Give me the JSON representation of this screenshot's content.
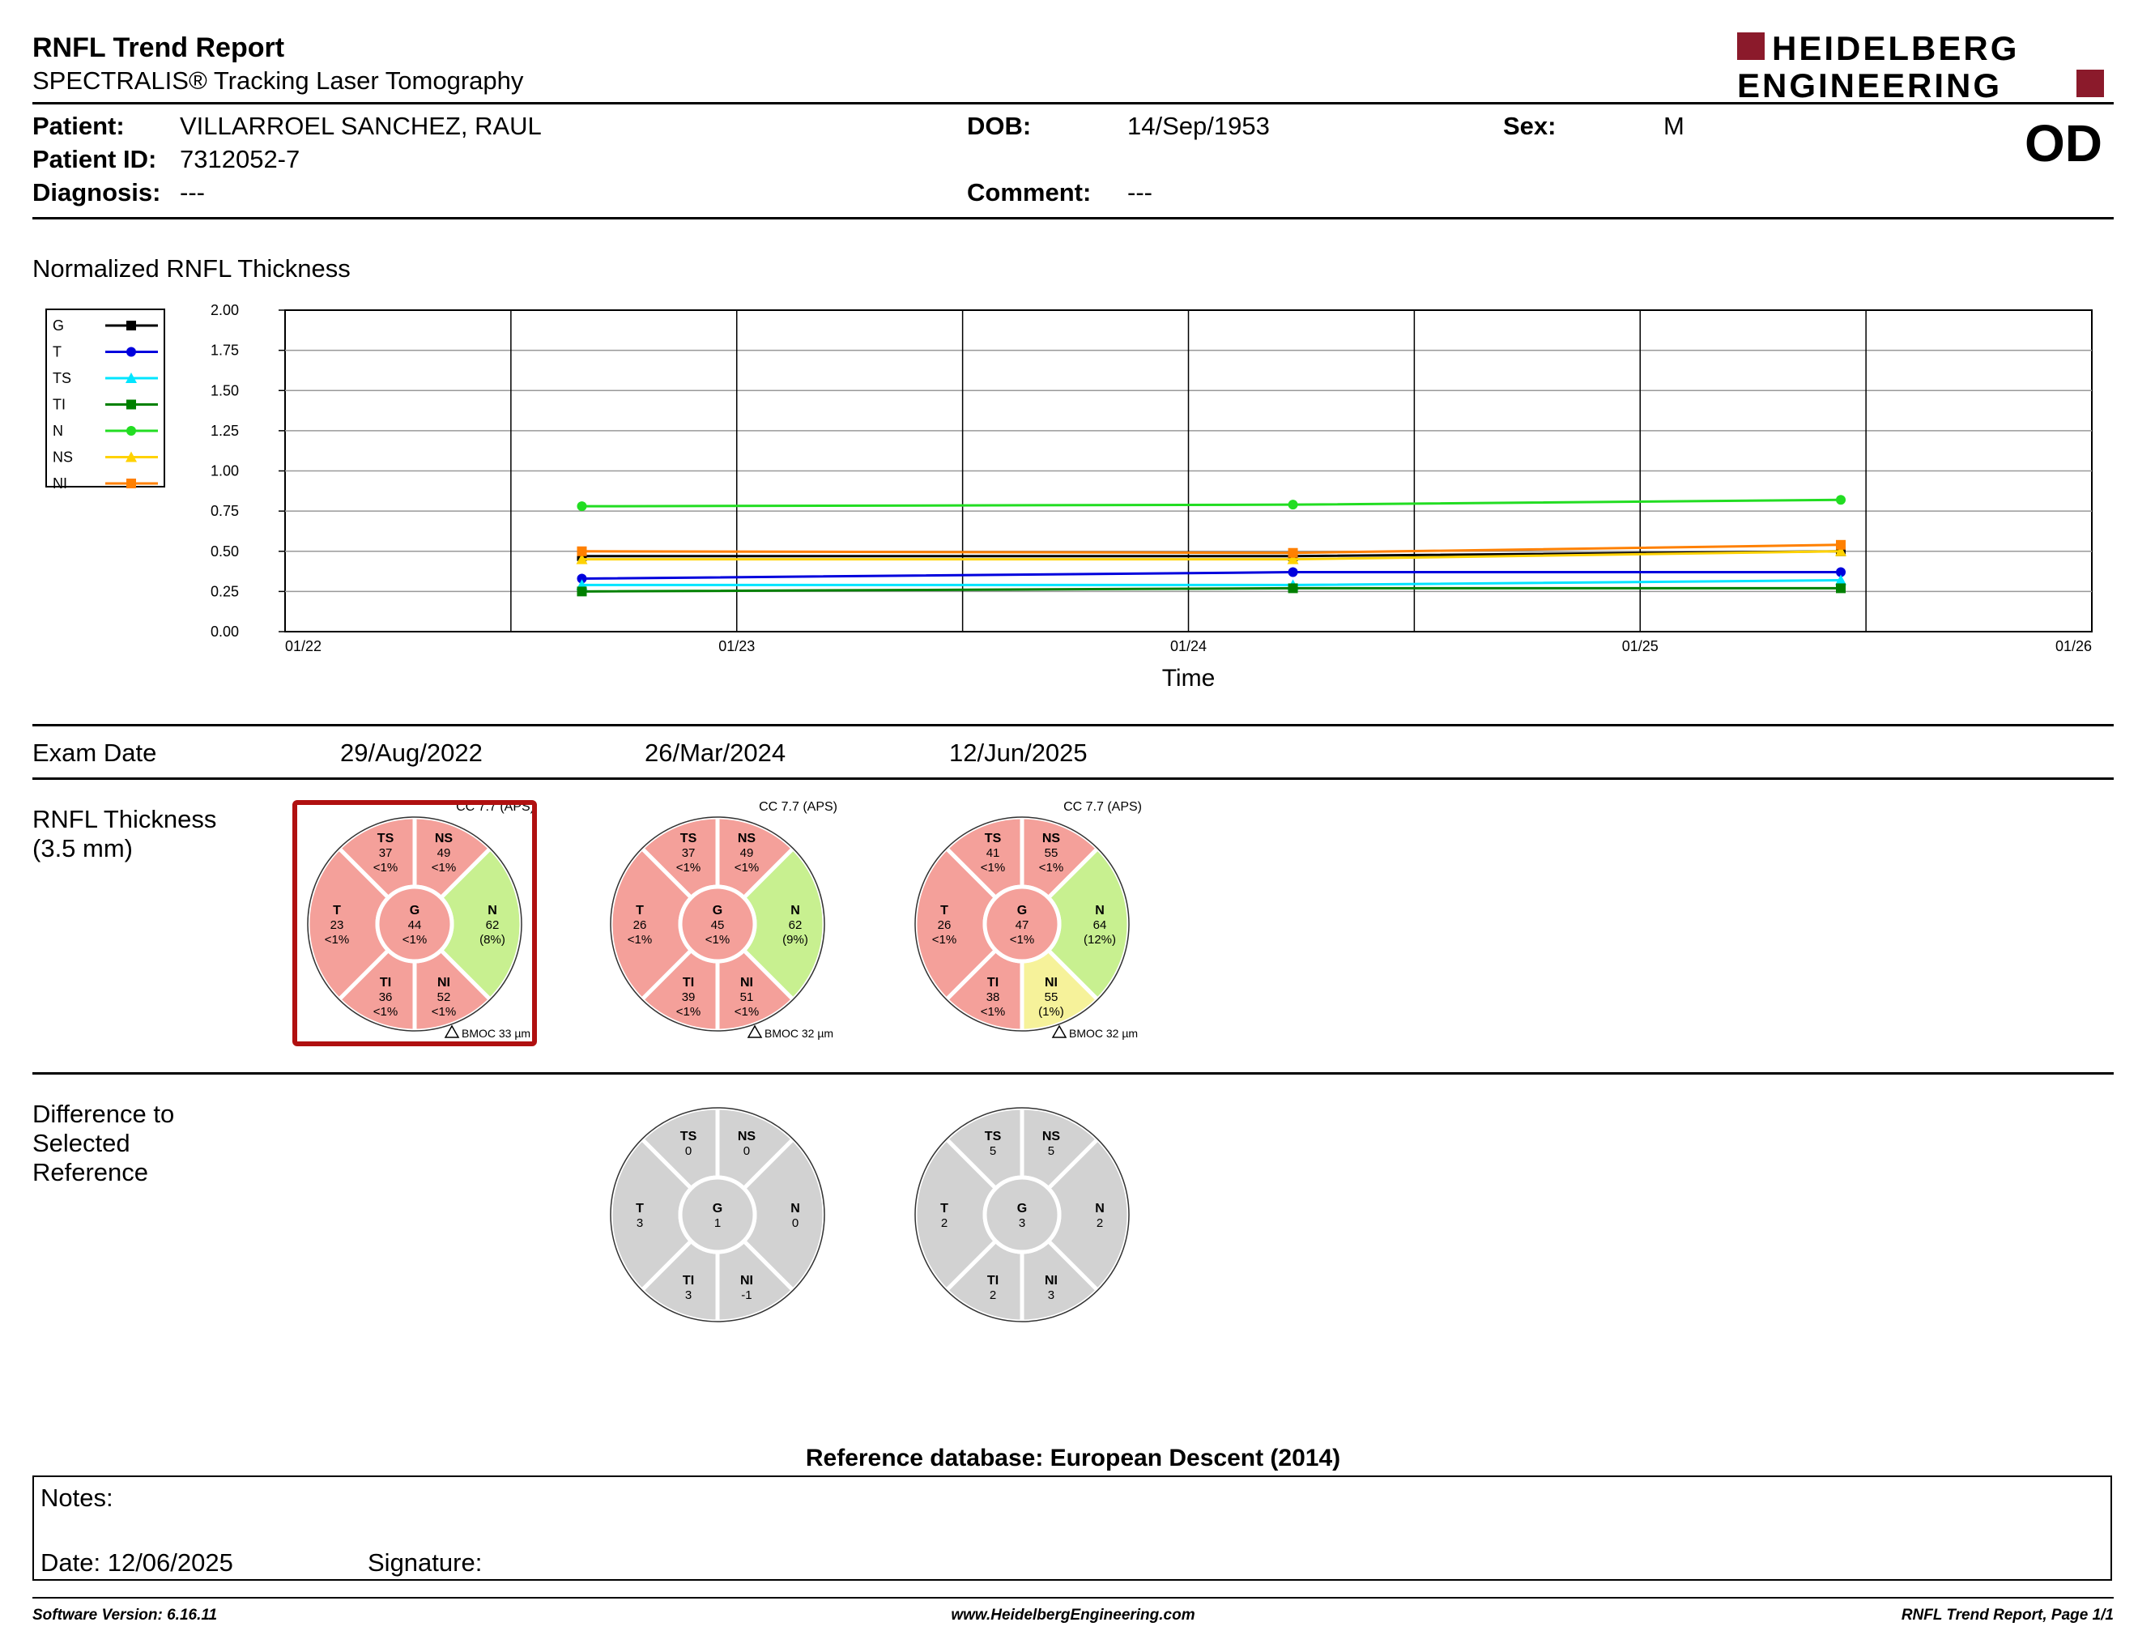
{
  "report": {
    "title": "RNFL Trend Report",
    "subtitle": "SPECTRALIS® Tracking Laser Tomography",
    "logo_line1": "HEIDELBERG",
    "logo_line2": "ENGINEERING",
    "eye": "OD"
  },
  "patient": {
    "patient_label": "Patient:",
    "patient_name": "VILLARROEL SANCHEZ, RAUL",
    "id_label": "Patient ID:",
    "id_value": "7312052-7",
    "diagnosis_label": "Diagnosis:",
    "diagnosis_value": "---",
    "dob_label": "DOB:",
    "dob_value": "14/Sep/1953",
    "comment_label": "Comment:",
    "comment_value": "---",
    "sex_label": "Sex:",
    "sex_value": "M"
  },
  "colors": {
    "brand": "#8b1a2b",
    "red_sector": "#f4a09a",
    "green_sector": "#c8f090",
    "yellow_sector": "#f6f29a",
    "gray_sector": "#d2d2d2",
    "selected_frame": "#b01010"
  },
  "chart_data": {
    "type": "line",
    "title": "Normalized RNFL Thickness",
    "xlabel": "Time",
    "ylabel": "",
    "ylim": [
      0,
      2
    ],
    "yticks": [
      "0.00",
      "0.25",
      "0.50",
      "0.75",
      "1.00",
      "1.25",
      "1.50",
      "1.75",
      "2.00"
    ],
    "xticks": [
      "01/22",
      "01/23",
      "01/24",
      "01/25",
      "01/26"
    ],
    "x": [
      "2022-08-29",
      "2024-03-26",
      "2025-06-12"
    ],
    "grid": true,
    "legend_position": "left",
    "series": [
      {
        "name": "G",
        "color": "#000000",
        "marker": "square",
        "values": [
          0.47,
          0.47,
          0.5
        ]
      },
      {
        "name": "T",
        "color": "#0000dd",
        "marker": "circle",
        "values": [
          0.33,
          0.37,
          0.37
        ]
      },
      {
        "name": "TS",
        "color": "#00e5ff",
        "marker": "triangle",
        "values": [
          0.29,
          0.29,
          0.32
        ]
      },
      {
        "name": "TI",
        "color": "#008000",
        "marker": "square",
        "values": [
          0.25,
          0.27,
          0.27
        ]
      },
      {
        "name": "N",
        "color": "#22dd22",
        "marker": "circle",
        "values": [
          0.78,
          0.79,
          0.82
        ]
      },
      {
        "name": "NS",
        "color": "#ffd200",
        "marker": "triangle",
        "values": [
          0.45,
          0.45,
          0.5
        ]
      },
      {
        "name": "NI",
        "color": "#ff8000",
        "marker": "square",
        "values": [
          0.5,
          0.49,
          0.54
        ]
      }
    ]
  },
  "exams": {
    "exam_date_label": "Exam Date",
    "thickness_label_1": "RNFL Thickness",
    "thickness_label_2": "(3.5 mm)",
    "difference_label_1": "Difference to",
    "difference_label_2": "Selected",
    "difference_label_3": "Reference",
    "dates": [
      "29/Aug/2022",
      "26/Mar/2024",
      "12/Jun/2025"
    ],
    "thickness": [
      {
        "cc": "CC 7.7 (APS)",
        "bmo": "BMOC 33 µm",
        "selected": true,
        "sectors": {
          "TS": {
            "value": "37",
            "pct": "<1%",
            "color": "red"
          },
          "NS": {
            "value": "49",
            "pct": "<1%",
            "color": "red"
          },
          "T": {
            "value": "23",
            "pct": "<1%",
            "color": "red"
          },
          "G": {
            "value": "44",
            "pct": "<1%",
            "color": "red"
          },
          "N": {
            "value": "62",
            "pct": "(8%)",
            "color": "green"
          },
          "TI": {
            "value": "36",
            "pct": "<1%",
            "color": "red"
          },
          "NI": {
            "value": "52",
            "pct": "<1%",
            "color": "red"
          }
        }
      },
      {
        "cc": "CC 7.7 (APS)",
        "bmo": "BMOC 32 µm",
        "selected": false,
        "sectors": {
          "TS": {
            "value": "37",
            "pct": "<1%",
            "color": "red"
          },
          "NS": {
            "value": "49",
            "pct": "<1%",
            "color": "red"
          },
          "T": {
            "value": "26",
            "pct": "<1%",
            "color": "red"
          },
          "G": {
            "value": "45",
            "pct": "<1%",
            "color": "red"
          },
          "N": {
            "value": "62",
            "pct": "(9%)",
            "color": "green"
          },
          "TI": {
            "value": "39",
            "pct": "<1%",
            "color": "red"
          },
          "NI": {
            "value": "51",
            "pct": "<1%",
            "color": "red"
          }
        }
      },
      {
        "cc": "CC 7.7 (APS)",
        "bmo": "BMOC 32 µm",
        "selected": false,
        "sectors": {
          "TS": {
            "value": "41",
            "pct": "<1%",
            "color": "red"
          },
          "NS": {
            "value": "55",
            "pct": "<1%",
            "color": "red"
          },
          "T": {
            "value": "26",
            "pct": "<1%",
            "color": "red"
          },
          "G": {
            "value": "47",
            "pct": "<1%",
            "color": "red"
          },
          "N": {
            "value": "64",
            "pct": "(12%)",
            "color": "green"
          },
          "TI": {
            "value": "38",
            "pct": "<1%",
            "color": "red"
          },
          "NI": {
            "value": "55",
            "pct": "(1%)",
            "color": "yellow"
          }
        }
      }
    ],
    "difference": [
      null,
      {
        "TS": "0",
        "NS": "0",
        "T": "3",
        "G": "1",
        "N": "0",
        "TI": "3",
        "NI": "-1"
      },
      {
        "TS": "5",
        "NS": "5",
        "T": "2",
        "G": "3",
        "N": "2",
        "TI": "2",
        "NI": "3"
      }
    ]
  },
  "reference_db": "Reference database: European Descent (2014)",
  "notes": {
    "notes_label": "Notes:",
    "date_label": "Date: 12/06/2025",
    "signature_label": "Signature:"
  },
  "footer": {
    "software": "Software Version: 6.16.11",
    "website": "www.HeidelbergEngineering.com",
    "page": "RNFL Trend Report, Page 1/1"
  }
}
